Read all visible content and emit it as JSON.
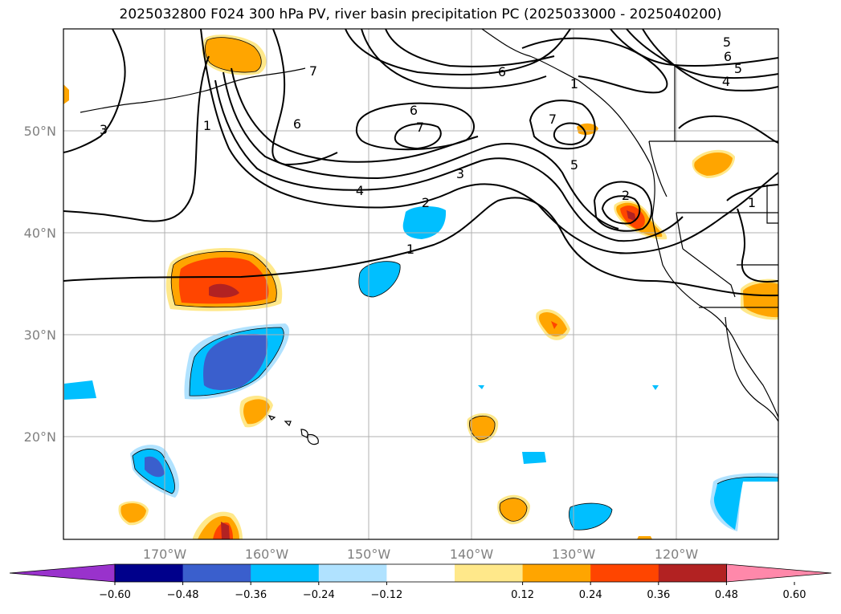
{
  "title": "2025032800 F024 300 hPa PV, river basin precipitation PC (2025033000 - 2025040200)",
  "latitude_labels": [
    "50°N",
    "40°N",
    "30°N",
    "20°N"
  ],
  "longitude_labels": [
    "170°W",
    "160°W",
    "150°W",
    "140°W",
    "130°W",
    "120°W"
  ],
  "colorbar": {
    "tick_labels": [
      "−0.60",
      "−0.48",
      "−0.36",
      "−0.24",
      "−0.12",
      "0.12",
      "0.24",
      "0.36",
      "0.48",
      "0.60"
    ],
    "colors": [
      "#9932cc",
      "#00008b",
      "#3a5fcd",
      "#00bfff",
      "#b0e2ff",
      "#ffffff",
      "#ffe88a",
      "#ffa500",
      "#ff4500",
      "#b22222",
      "#ff88aa"
    ]
  },
  "contour_labels": [
    "1",
    "2",
    "3",
    "4",
    "5",
    "6",
    "7",
    "6",
    "7",
    "6",
    "1",
    "2",
    "5",
    "6",
    "5",
    "4",
    "3",
    "1",
    "7",
    "1"
  ]
}
